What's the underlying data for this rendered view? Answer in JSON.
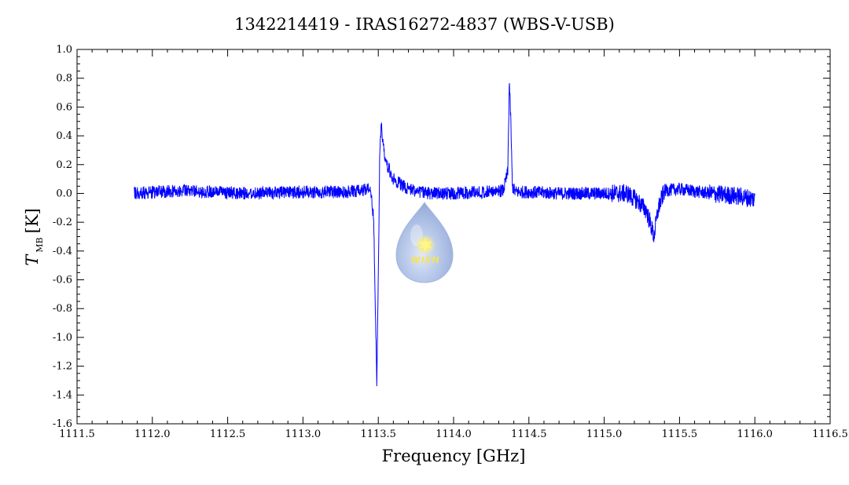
{
  "chart_data": {
    "type": "line",
    "title": "1342214419 - IRAS16272-4837 (WBS-V-USB)",
    "xlabel": "Frequency [GHz]",
    "ylabel_main": "T",
    "ylabel_sub": "MB",
    "ylabel_unit": "[K]",
    "xlim": [
      1111.5,
      1116.5
    ],
    "ylim": [
      -1.6,
      1.0
    ],
    "x_ticks": [
      1111.5,
      1112.0,
      1112.5,
      1113.0,
      1113.5,
      1114.0,
      1114.5,
      1115.0,
      1115.5,
      1116.0,
      1116.5
    ],
    "x_tick_labels": [
      "1111.5",
      "1112.0",
      "1112.5",
      "1113.0",
      "1113.5",
      "1114.0",
      "1114.5",
      "1115.0",
      "1115.5",
      "1116.0",
      "1116.5"
    ],
    "y_ticks": [
      1.0,
      0.8,
      0.6,
      0.4,
      0.2,
      0.0,
      -0.2,
      -0.4,
      -0.6,
      -0.8,
      -1.0,
      -1.2,
      -1.4,
      -1.6
    ],
    "y_tick_labels": [
      "1.0",
      "0.8",
      "0.6",
      "0.4",
      "0.2",
      "0.0",
      "-0.2",
      "-0.4",
      "-0.6",
      "-0.8",
      "-1.0",
      "-1.2",
      "-1.4",
      "-1.6"
    ],
    "grid": false,
    "series": [
      {
        "color": "#0000ff",
        "x": [
          1111.88,
          1112.2,
          1112.6,
          1113.0,
          1113.3,
          1113.45,
          1113.47,
          1113.48,
          1113.49,
          1113.5,
          1113.51,
          1113.52,
          1113.53,
          1113.55,
          1113.6,
          1113.7,
          1113.85,
          1114.0,
          1114.2,
          1114.33,
          1114.36,
          1114.37,
          1114.38,
          1114.39,
          1114.41,
          1114.5,
          1114.7,
          1115.0,
          1115.15,
          1115.22,
          1115.28,
          1115.31,
          1115.33,
          1115.36,
          1115.4,
          1115.5,
          1115.7,
          1115.9,
          1116.0
        ],
        "values": [
          0.0,
          0.02,
          0.0,
          0.01,
          0.01,
          0.03,
          -0.2,
          -0.8,
          -1.3,
          -0.6,
          0.3,
          0.48,
          0.35,
          0.22,
          0.1,
          0.03,
          0.0,
          0.0,
          0.01,
          0.02,
          0.15,
          0.78,
          0.5,
          0.05,
          0.01,
          0.01,
          0.0,
          0.0,
          0.0,
          -0.05,
          -0.12,
          -0.22,
          -0.3,
          -0.1,
          0.02,
          0.03,
          0.0,
          -0.02,
          -0.04
        ]
      }
    ]
  },
  "logo": {
    "text": "WISH"
  }
}
